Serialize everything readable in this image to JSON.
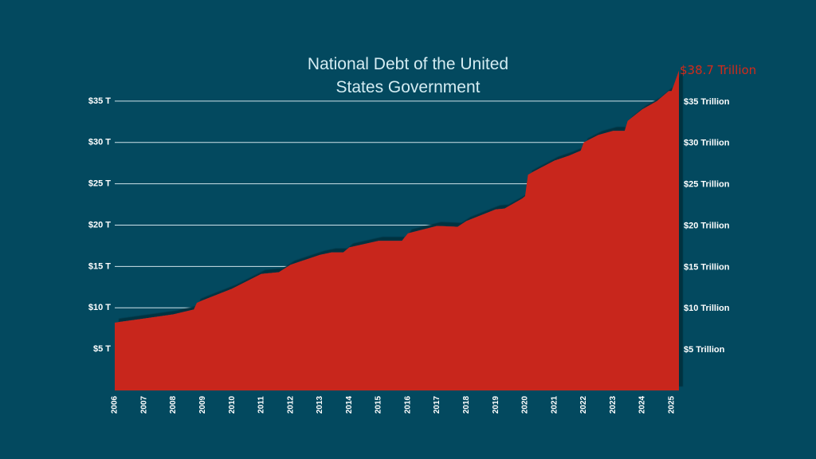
{
  "chart_data": {
    "type": "area",
    "title": "National Debt of the United States Government",
    "annotation": "$38.7 Trillion",
    "x": [
      2006,
      2007,
      2008,
      2008.7,
      2008.8,
      2009,
      2010,
      2011,
      2011.6,
      2012,
      2013,
      2013.4,
      2013.8,
      2014,
      2015,
      2015.8,
      2016,
      2017,
      2017.7,
      2018,
      2019,
      2019.3,
      2019.9,
      2020.0,
      2020.1,
      2020.3,
      2021,
      2021.5,
      2021.9,
      2022,
      2022.5,
      2023,
      2023.4,
      2023.5,
      2024,
      2024.5,
      2024.9,
      2025.0,
      2025.25
    ],
    "series": [
      {
        "color": "#c8281a",
        "values": [
          8.2,
          8.7,
          9.2,
          9.8,
          10.6,
          10.9,
          12.3,
          14.1,
          14.3,
          15.2,
          16.4,
          16.7,
          16.7,
          17.3,
          18.1,
          18.1,
          19.0,
          19.9,
          19.8,
          20.5,
          21.9,
          22.0,
          23.2,
          23.5,
          26.1,
          26.5,
          27.8,
          28.4,
          29.0,
          30.0,
          30.9,
          31.4,
          31.4,
          32.6,
          34.0,
          35.0,
          36.2,
          36.2,
          38.7
        ]
      }
    ],
    "xlim": [
      2006,
      2025.25
    ],
    "xticks": [
      2006,
      2007,
      2008,
      2009,
      2010,
      2011,
      2012,
      2013,
      2014,
      2015,
      2016,
      2017,
      2018,
      2019,
      2020,
      2021,
      2022,
      2023,
      2024,
      2025
    ],
    "ylim": [
      0,
      40
    ],
    "yticks": [
      {
        "value": 5,
        "label": "$5 T"
      },
      {
        "value": 10,
        "label": "$10 T"
      },
      {
        "value": 15,
        "label": "$15 T"
      },
      {
        "value": 20,
        "label": "$20 T"
      },
      {
        "value": 25,
        "label": "$25 T"
      },
      {
        "value": 30,
        "label": "$30 T"
      },
      {
        "value": 35,
        "label": "$35 T"
      }
    ],
    "y2lim": [
      0,
      40
    ],
    "y2ticks": [
      {
        "value": 5,
        "label": "$5 Trillion"
      },
      {
        "value": 10,
        "label": "$10 Trillion"
      },
      {
        "value": 15,
        "label": "$15 Trillion"
      },
      {
        "value": 20,
        "label": "$20 Trillion"
      },
      {
        "value": 25,
        "label": "$25 Trillion"
      },
      {
        "value": 30,
        "label": "$30 Trillion"
      },
      {
        "value": 35,
        "label": "$35 Trillion"
      }
    ],
    "grid": true
  }
}
